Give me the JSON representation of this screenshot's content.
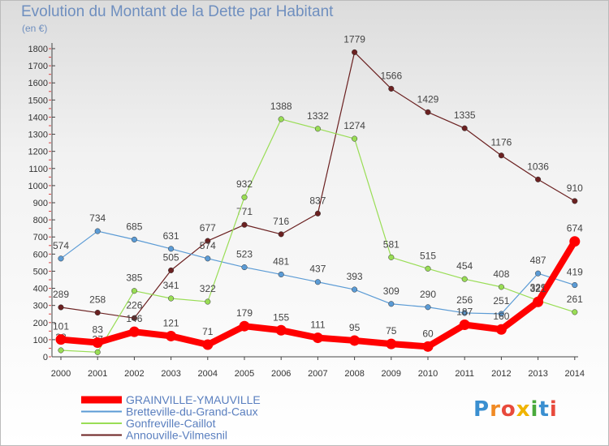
{
  "title": "Evolution du Montant de la Dette par Habitant",
  "unit_label": "(en €)",
  "logo": {
    "text": "Proxiti",
    "letters": [
      "P",
      "r",
      "o",
      "x",
      "i",
      "t",
      "i"
    ]
  },
  "chart_data": {
    "type": "line",
    "title": "Evolution du Montant de la Dette par Habitant",
    "ylabel": "(en €)",
    "xlabel": "",
    "ylim": [
      0,
      1800
    ],
    "yticks": [
      0,
      100,
      200,
      300,
      400,
      500,
      600,
      700,
      800,
      900,
      1000,
      1100,
      1200,
      1300,
      1400,
      1500,
      1600,
      1700,
      1800
    ],
    "grid": false,
    "legend_position": "bottom-left",
    "x": [
      "2000",
      "2001",
      "2002",
      "2003",
      "2004",
      "2005",
      "2006",
      "2007",
      "2008",
      "2009",
      "2010",
      "2011",
      "2012",
      "2013",
      "2014"
    ],
    "series": [
      {
        "name": "Annouville-Vilmesnil",
        "color": "#6b2121",
        "values": [
          289,
          258,
          226,
          505,
          677,
          771,
          716,
          837,
          1779,
          1566,
          1429,
          1335,
          1176,
          1036,
          910
        ]
      },
      {
        "name": "Bretteville-du-Grand-Caux",
        "color": "#5b9bd5",
        "values": [
          574,
          734,
          685,
          631,
          574,
          523,
          481,
          437,
          393,
          309,
          290,
          256,
          251,
          487,
          419
        ]
      },
      {
        "name": "Gonfreville-Caillot",
        "color": "#99dd55",
        "values": [
          38,
          27,
          385,
          341,
          322,
          932,
          1388,
          1332,
          1274,
          581,
          515,
          454,
          408,
          329,
          261
        ]
      },
      {
        "name": "GRAINVILLE-YMAUVILLE",
        "color": "#ff0000",
        "values": [
          101,
          83,
          146,
          121,
          71,
          179,
          155,
          111,
          95,
          75,
          60,
          187,
          160,
          321,
          674
        ]
      }
    ],
    "legend": [
      "GRAINVILLE-YMAUVILLE",
      "Bretteville-du-Grand-Caux",
      "Gonfreville-Caillot",
      "Annouville-Vilmesnil"
    ]
  }
}
